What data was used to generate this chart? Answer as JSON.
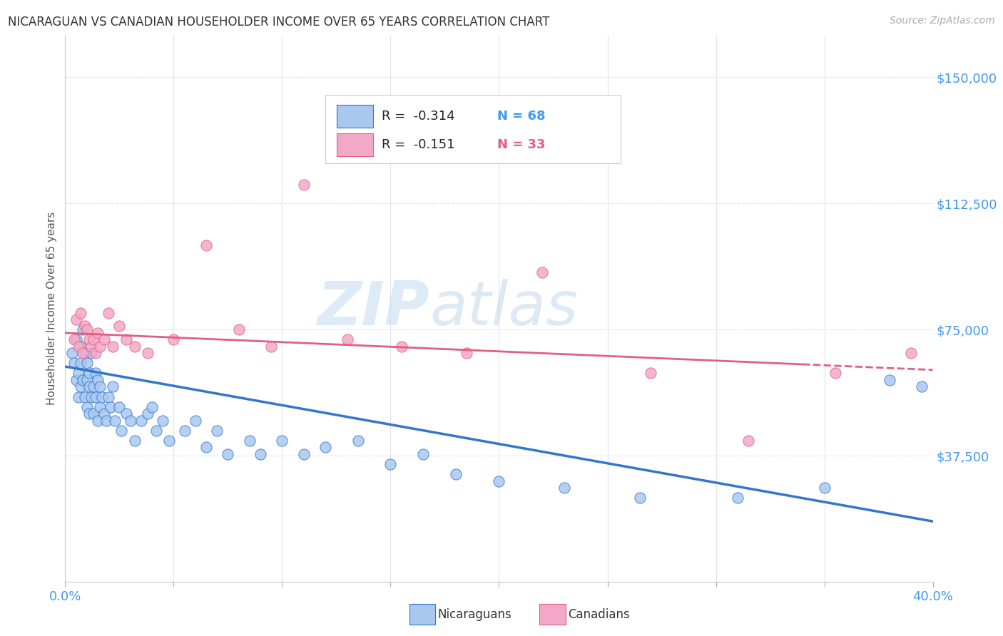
{
  "title": "NICARAGUAN VS CANADIAN HOUSEHOLDER INCOME OVER 65 YEARS CORRELATION CHART",
  "source": "Source: ZipAtlas.com",
  "ylabel": "Householder Income Over 65 years",
  "xlim": [
    0.0,
    0.4
  ],
  "ylim": [
    0,
    162500
  ],
  "xticks": [
    0.0,
    0.05,
    0.1,
    0.15,
    0.2,
    0.25,
    0.3,
    0.35,
    0.4
  ],
  "yticks": [
    0,
    37500,
    75000,
    112500,
    150000
  ],
  "yticklabels": [
    "",
    "$37,500",
    "$75,000",
    "$112,500",
    "$150,000"
  ],
  "watermark_zip": "ZIP",
  "watermark_atlas": "atlas",
  "nic_color": "#a8c8f0",
  "can_color": "#f4a8c8",
  "nic_line_color": "#3377cc",
  "can_line_color": "#e06080",
  "tick_color": "#4499ee",
  "grid_color": "#e0e4f0",
  "background": "#ffffff",
  "title_color": "#333333",
  "legend_R_color": "#222222",
  "legend_N_nic_color": "#4499ee",
  "legend_N_can_color": "#e06080",
  "nicaraguan_x": [
    0.003,
    0.004,
    0.005,
    0.005,
    0.006,
    0.006,
    0.007,
    0.007,
    0.007,
    0.008,
    0.008,
    0.009,
    0.009,
    0.01,
    0.01,
    0.01,
    0.011,
    0.011,
    0.011,
    0.012,
    0.012,
    0.013,
    0.013,
    0.014,
    0.014,
    0.015,
    0.015,
    0.016,
    0.016,
    0.017,
    0.018,
    0.019,
    0.02,
    0.021,
    0.022,
    0.023,
    0.025,
    0.026,
    0.028,
    0.03,
    0.032,
    0.035,
    0.038,
    0.04,
    0.042,
    0.045,
    0.048,
    0.055,
    0.06,
    0.065,
    0.07,
    0.075,
    0.085,
    0.09,
    0.1,
    0.11,
    0.12,
    0.135,
    0.15,
    0.165,
    0.18,
    0.2,
    0.23,
    0.265,
    0.31,
    0.35,
    0.38,
    0.395
  ],
  "nicaraguan_y": [
    68000,
    65000,
    72000,
    60000,
    62000,
    55000,
    70000,
    65000,
    58000,
    75000,
    60000,
    68000,
    55000,
    65000,
    60000,
    52000,
    62000,
    58000,
    50000,
    68000,
    55000,
    58000,
    50000,
    62000,
    55000,
    60000,
    48000,
    58000,
    52000,
    55000,
    50000,
    48000,
    55000,
    52000,
    58000,
    48000,
    52000,
    45000,
    50000,
    48000,
    42000,
    48000,
    50000,
    52000,
    45000,
    48000,
    42000,
    45000,
    48000,
    40000,
    45000,
    38000,
    42000,
    38000,
    42000,
    38000,
    40000,
    42000,
    35000,
    38000,
    32000,
    30000,
    28000,
    25000,
    25000,
    28000,
    60000,
    58000
  ],
  "canadian_x": [
    0.004,
    0.005,
    0.006,
    0.007,
    0.008,
    0.009,
    0.01,
    0.011,
    0.012,
    0.013,
    0.014,
    0.015,
    0.016,
    0.018,
    0.02,
    0.022,
    0.025,
    0.028,
    0.032,
    0.038,
    0.05,
    0.065,
    0.08,
    0.095,
    0.11,
    0.13,
    0.155,
    0.185,
    0.22,
    0.27,
    0.315,
    0.355,
    0.39
  ],
  "canadian_y": [
    72000,
    78000,
    70000,
    80000,
    68000,
    76000,
    75000,
    72000,
    70000,
    72000,
    68000,
    74000,
    70000,
    72000,
    80000,
    70000,
    76000,
    72000,
    70000,
    68000,
    72000,
    100000,
    75000,
    70000,
    118000,
    72000,
    70000,
    68000,
    92000,
    62000,
    42000,
    62000,
    68000
  ],
  "nic_trend_x0": 0.0,
  "nic_trend_y0": 64000,
  "nic_trend_x1": 0.4,
  "nic_trend_y1": 18000,
  "can_trend_x0": 0.0,
  "can_trend_y0": 74000,
  "can_trend_x1": 0.4,
  "can_trend_y1": 63000
}
